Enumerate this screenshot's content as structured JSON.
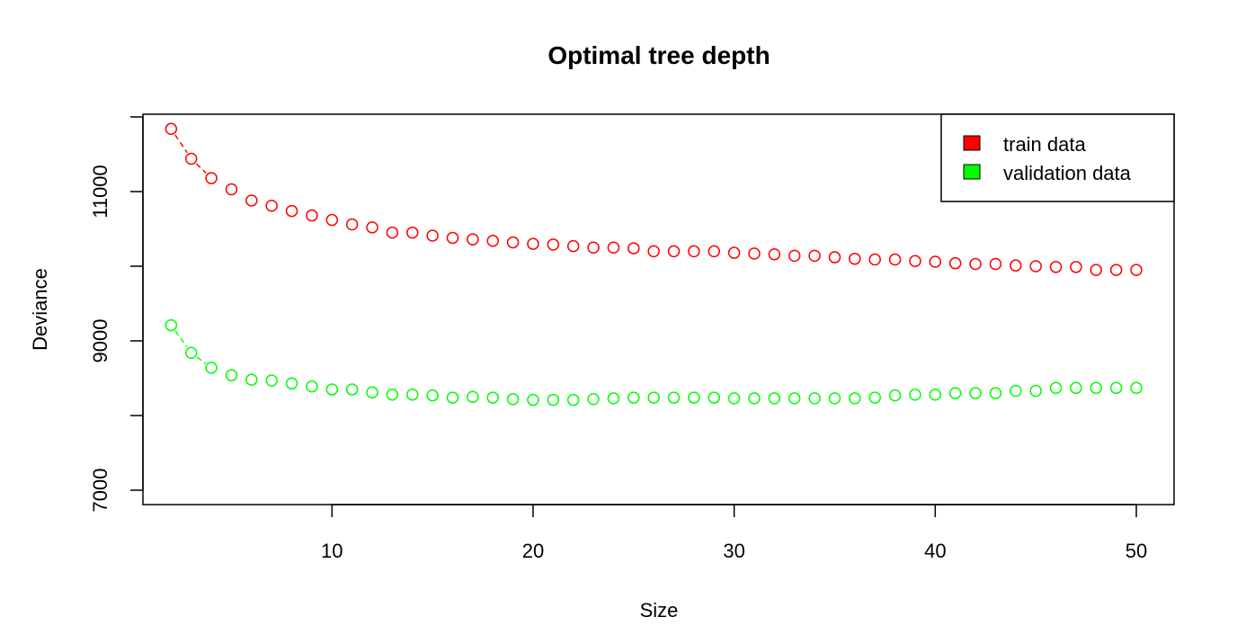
{
  "chart_data": {
    "type": "scatter",
    "title": "Optimal tree depth",
    "xlabel": "Size",
    "ylabel": "Deviance",
    "xlim": [
      0.5,
      52
    ],
    "ylim": [
      6800,
      12000
    ],
    "x_ticks": [
      10,
      20,
      30,
      40,
      50
    ],
    "y_ticks": [
      7000,
      9000,
      11000
    ],
    "y_minor_ticks": [
      8000,
      10000,
      12000
    ],
    "grid": false,
    "legend_position": "top-right",
    "series": [
      {
        "name": "train data",
        "color": "#ff0000",
        "marker": "open-circle",
        "x": [
          2,
          3,
          4,
          5,
          6,
          7,
          8,
          9,
          10,
          11,
          12,
          13,
          14,
          15,
          16,
          17,
          18,
          19,
          20,
          21,
          22,
          23,
          24,
          25,
          26,
          27,
          28,
          29,
          30,
          31,
          32,
          33,
          34,
          35,
          36,
          37,
          38,
          39,
          40,
          41,
          42,
          43,
          44,
          45,
          46,
          47,
          48,
          49,
          50
        ],
        "values": [
          11840,
          11440,
          11180,
          11030,
          10880,
          10810,
          10740,
          10680,
          10620,
          10560,
          10520,
          10450,
          10450,
          10410,
          10380,
          10360,
          10340,
          10320,
          10300,
          10290,
          10270,
          10250,
          10250,
          10240,
          10200,
          10200,
          10200,
          10200,
          10180,
          10170,
          10160,
          10140,
          10140,
          10120,
          10100,
          10090,
          10090,
          10070,
          10060,
          10040,
          10030,
          10030,
          10010,
          10000,
          9990,
          9990,
          9950,
          9950,
          9950
        ]
      },
      {
        "name": "validation data",
        "color": "#00ff00",
        "marker": "open-circle",
        "x": [
          2,
          3,
          4,
          5,
          6,
          7,
          8,
          9,
          10,
          11,
          12,
          13,
          14,
          15,
          16,
          17,
          18,
          19,
          20,
          21,
          22,
          23,
          24,
          25,
          26,
          27,
          28,
          29,
          30,
          31,
          32,
          33,
          34,
          35,
          36,
          37,
          38,
          39,
          40,
          41,
          42,
          43,
          44,
          45,
          46,
          47,
          48,
          49,
          50
        ],
        "values": [
          9210,
          8840,
          8640,
          8540,
          8480,
          8470,
          8430,
          8390,
          8350,
          8350,
          8310,
          8280,
          8280,
          8270,
          8240,
          8250,
          8240,
          8220,
          8210,
          8210,
          8210,
          8220,
          8230,
          8240,
          8240,
          8240,
          8240,
          8240,
          8230,
          8230,
          8230,
          8230,
          8230,
          8230,
          8230,
          8240,
          8270,
          8280,
          8280,
          8300,
          8300,
          8300,
          8330,
          8330,
          8370,
          8370,
          8370,
          8370,
          8370
        ]
      }
    ]
  }
}
